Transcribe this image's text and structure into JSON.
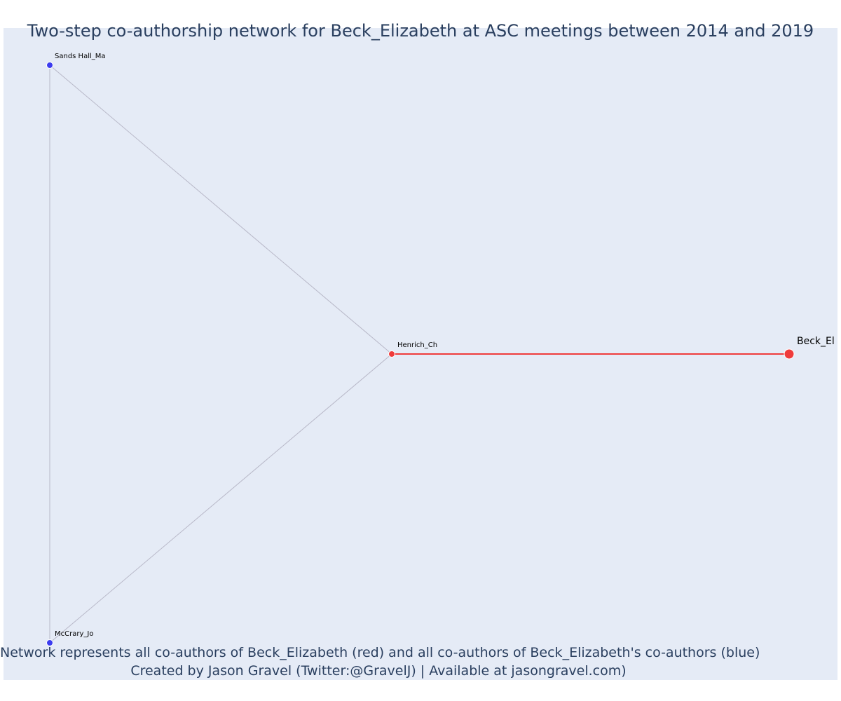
{
  "title": "Two-step co-authorship network for Beck_Elizabeth at ASC meetings between 2014 and 2019",
  "caption": {
    "line1": "Network represents all co-authors of Beck_Elizabeth (red) and all co-authors of Beck_Elizabeth's co-authors (blue)",
    "line2": "Created by Jason Gravel (Twitter:@GravelJ) | Available at jasongravel.com)"
  },
  "colors": {
    "background": "#e5ebf6",
    "text": "#2a3f5f",
    "ego": "#ef3b3b",
    "first_step": "#ef3b3b",
    "second_step": "#3c3cef",
    "edge_default": "#b8b8c8",
    "edge_ego": "#ef3b3b"
  },
  "network": {
    "nodes": [
      {
        "id": "Beck_El",
        "label": "Beck_El",
        "group": "ego"
      },
      {
        "id": "Henrich_Ch",
        "label": "Henrich_Ch",
        "group": "first_step"
      },
      {
        "id": "Sands Hall_Ma",
        "label": "Sands Hall_Ma",
        "group": "second_step"
      },
      {
        "id": "McCrary_Jo",
        "label": "McCrary_Jo",
        "group": "second_step"
      }
    ],
    "edges": [
      {
        "source": "Beck_El",
        "target": "Henrich_Ch",
        "type": "ego"
      },
      {
        "source": "Henrich_Ch",
        "target": "Sands Hall_Ma",
        "type": "default"
      },
      {
        "source": "Henrich_Ch",
        "target": "McCrary_Jo",
        "type": "default"
      },
      {
        "source": "Sands Hall_Ma",
        "target": "McCrary_Jo",
        "type": "default"
      }
    ]
  }
}
